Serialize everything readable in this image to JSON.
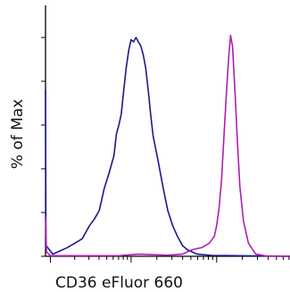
{
  "chart_data": {
    "type": "line",
    "title": "",
    "xlabel": "CD36 eFluor 660",
    "ylabel": "% of Max",
    "x_scale": "log",
    "y_range": [
      0,
      100
    ],
    "grid": false,
    "legend": "none",
    "series": [
      {
        "name": "",
        "color": "#1a1a8c",
        "points": [
          [
            0.0,
            76
          ],
          [
            0.002,
            5
          ],
          [
            0.03,
            1
          ],
          [
            0.05,
            2
          ],
          [
            0.09,
            4
          ],
          [
            0.12,
            6
          ],
          [
            0.15,
            8
          ],
          [
            0.18,
            14
          ],
          [
            0.2,
            17
          ],
          [
            0.22,
            21
          ],
          [
            0.24,
            31
          ],
          [
            0.26,
            38
          ],
          [
            0.28,
            46
          ],
          [
            0.29,
            56
          ],
          [
            0.3,
            60
          ],
          [
            0.31,
            65
          ],
          [
            0.32,
            76
          ],
          [
            0.33,
            86
          ],
          [
            0.34,
            94
          ],
          [
            0.35,
            99
          ],
          [
            0.36,
            98
          ],
          [
            0.37,
            100
          ],
          [
            0.38,
            98
          ],
          [
            0.39,
            96
          ],
          [
            0.4,
            92
          ],
          [
            0.41,
            86
          ],
          [
            0.42,
            76
          ],
          [
            0.43,
            65
          ],
          [
            0.44,
            55
          ],
          [
            0.46,
            44
          ],
          [
            0.48,
            32
          ],
          [
            0.5,
            21
          ],
          [
            0.52,
            14
          ],
          [
            0.54,
            9
          ],
          [
            0.56,
            5
          ],
          [
            0.58,
            3
          ],
          [
            0.62,
            1
          ],
          [
            0.68,
            0.4
          ],
          [
            1.0,
            0
          ]
        ]
      },
      {
        "name": "",
        "color": "#b01fb0",
        "points": [
          [
            0.0,
            18
          ],
          [
            0.004,
            2
          ],
          [
            0.02,
            0.3
          ],
          [
            0.3,
            0.3
          ],
          [
            0.38,
            1
          ],
          [
            0.5,
            0.5
          ],
          [
            0.56,
            1
          ],
          [
            0.6,
            3
          ],
          [
            0.64,
            4
          ],
          [
            0.67,
            6
          ],
          [
            0.69,
            9
          ],
          [
            0.7,
            14
          ],
          [
            0.71,
            22
          ],
          [
            0.72,
            35
          ],
          [
            0.73,
            55
          ],
          [
            0.74,
            75
          ],
          [
            0.75,
            92
          ],
          [
            0.757,
            101
          ],
          [
            0.765,
            96
          ],
          [
            0.775,
            75
          ],
          [
            0.785,
            52
          ],
          [
            0.795,
            32
          ],
          [
            0.81,
            16
          ],
          [
            0.83,
            6
          ],
          [
            0.86,
            1
          ],
          [
            0.9,
            0.2
          ],
          [
            1.0,
            0
          ]
        ]
      }
    ]
  }
}
